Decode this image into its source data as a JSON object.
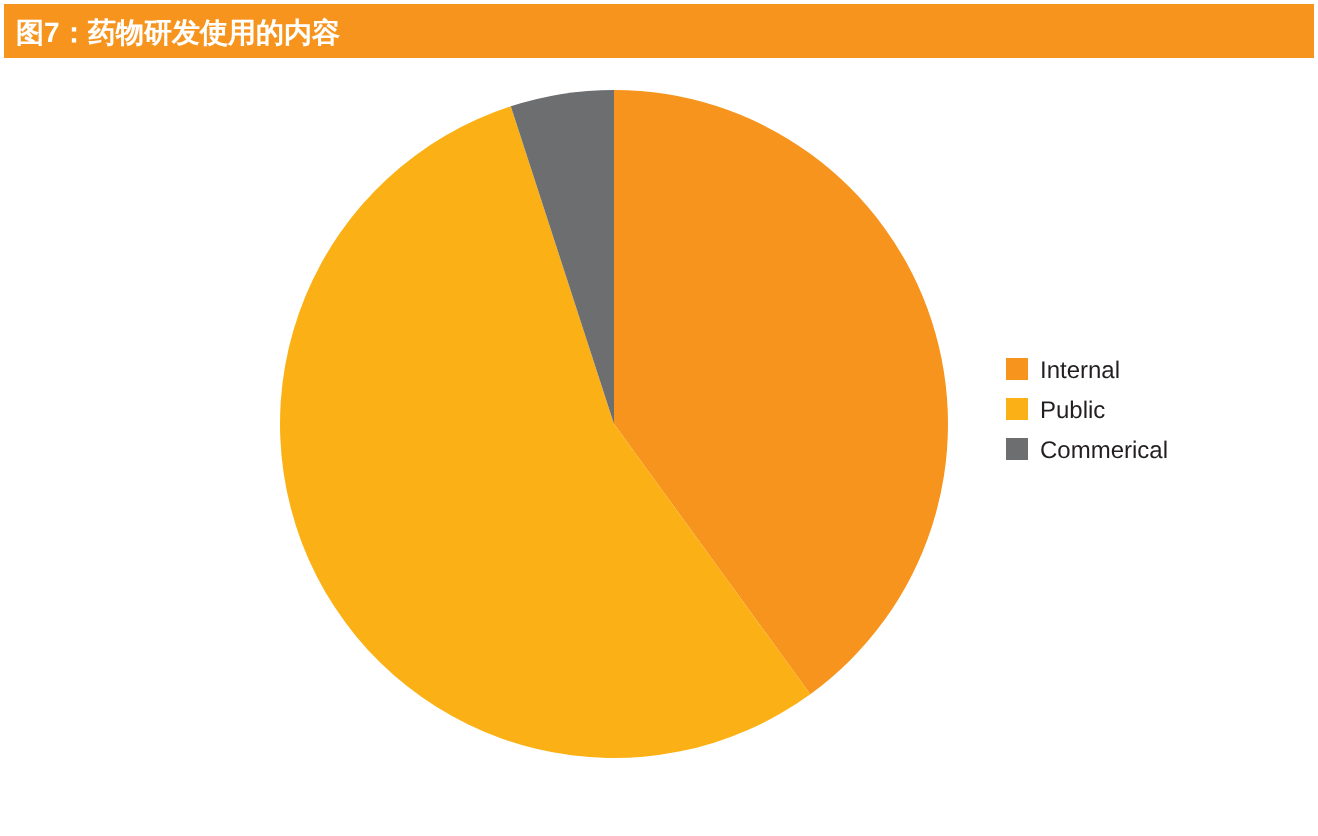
{
  "chart_data": {
    "type": "pie",
    "title": "图7：药物研发使用的内容",
    "categories": [
      "Internal",
      "Public",
      "Commerical"
    ],
    "values": [
      40,
      55,
      5
    ],
    "colors": [
      "#f7941d",
      "#fbb116",
      "#6d6e70"
    ],
    "legend": "right"
  }
}
